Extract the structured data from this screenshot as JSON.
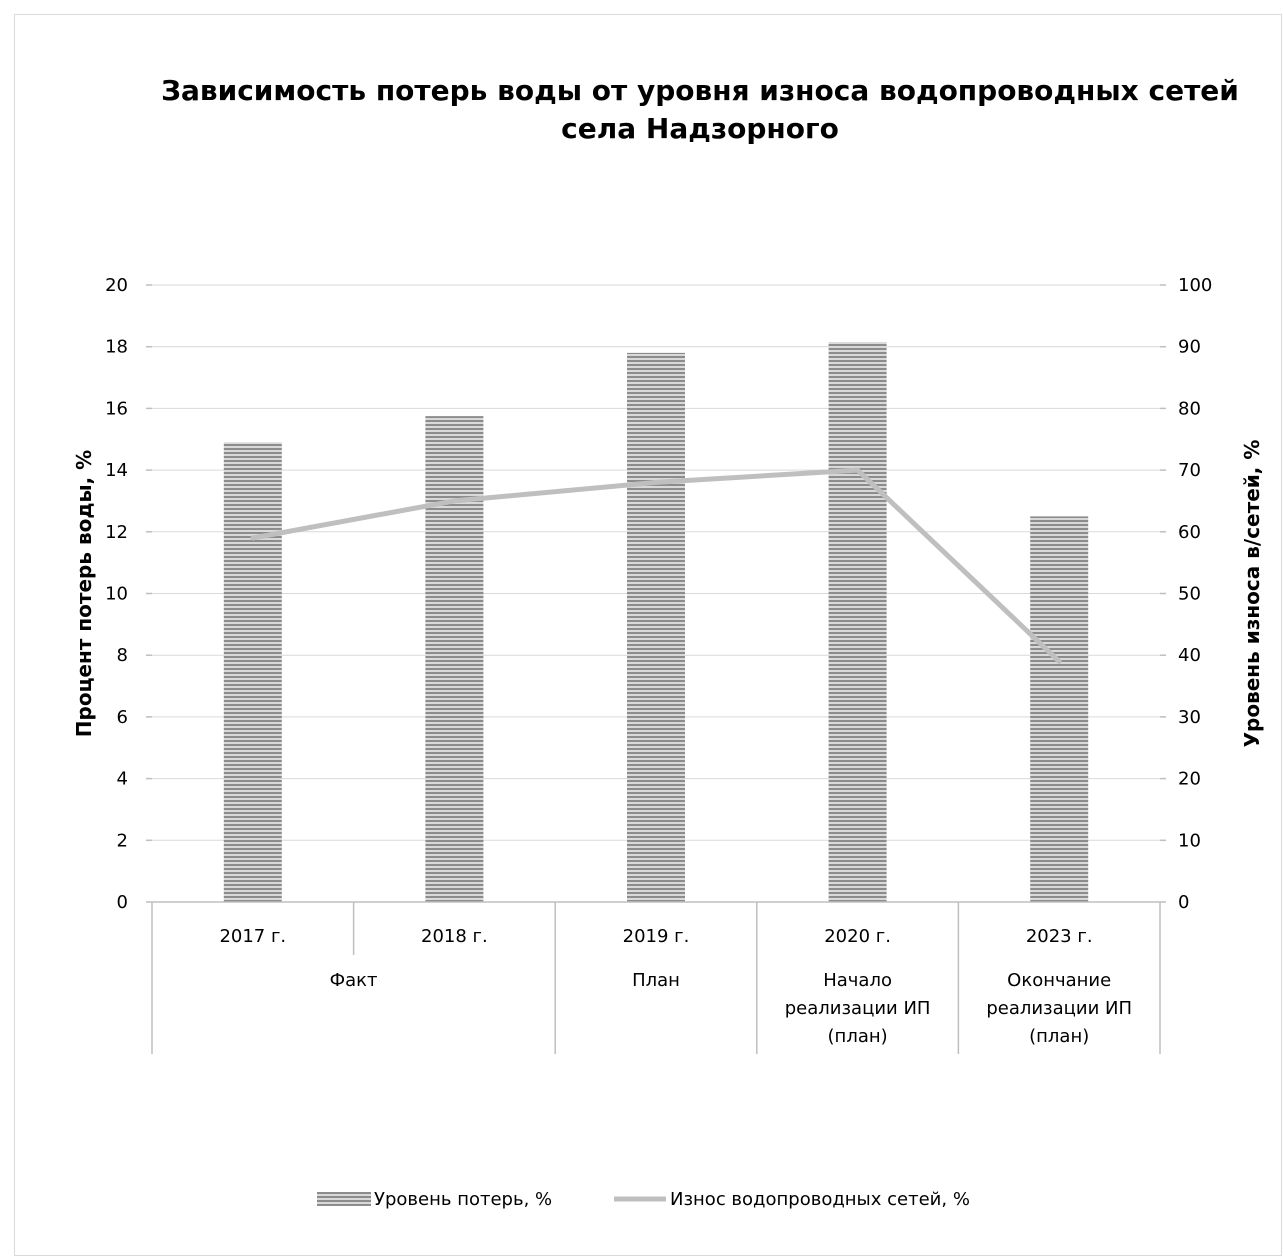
{
  "chart_data": {
    "type": "bar",
    "title_lines": [
      "Зависимость потерь воды от уровня износа водопроводных сетей",
      "села Надзорного"
    ],
    "ylabel": "Процент потерь воды, %",
    "y2label": "Уровень износа в/сетей, %",
    "ylim": [
      0,
      20
    ],
    "y2lim": [
      0,
      100
    ],
    "yticks": [
      "0",
      "2",
      "4",
      "6",
      "8",
      "10",
      "12",
      "14",
      "16",
      "18",
      "20"
    ],
    "y2ticks": [
      "0",
      "10",
      "20",
      "30",
      "40",
      "50",
      "60",
      "70",
      "80",
      "90",
      "100"
    ],
    "grid": true,
    "categories": [
      "2017 г.",
      "2018 г.",
      "2019 г.",
      "2020 г.",
      "2023 г."
    ],
    "groups": [
      {
        "lines": [
          "Факт"
        ],
        "span": [
          0,
          1
        ]
      },
      {
        "lines": [
          "План"
        ],
        "span": [
          2,
          2
        ]
      },
      {
        "lines": [
          "Начало",
          "реализации ИП",
          "(план)"
        ],
        "span": [
          3,
          3
        ]
      },
      {
        "lines": [
          "Окончание",
          "реализации ИП",
          "(план)"
        ],
        "span": [
          4,
          4
        ]
      }
    ],
    "series": [
      {
        "name": "Уровень потерь, %",
        "type": "bar",
        "axis": "left",
        "values": [
          14.9,
          15.75,
          17.8,
          18.15,
          12.5
        ]
      },
      {
        "name": "Износ водопроводных сетей, %",
        "type": "line",
        "axis": "right",
        "values": [
          59,
          65,
          68,
          70,
          39
        ]
      }
    ],
    "legend_position": "bottom",
    "colors": {
      "bar_stripe_dark": "#8c8c8c",
      "bar_stripe_light": "#d9d9d9",
      "line": "#bfbfbf",
      "grid": "#d9d9d9",
      "axis": "#bfbfbf"
    }
  }
}
